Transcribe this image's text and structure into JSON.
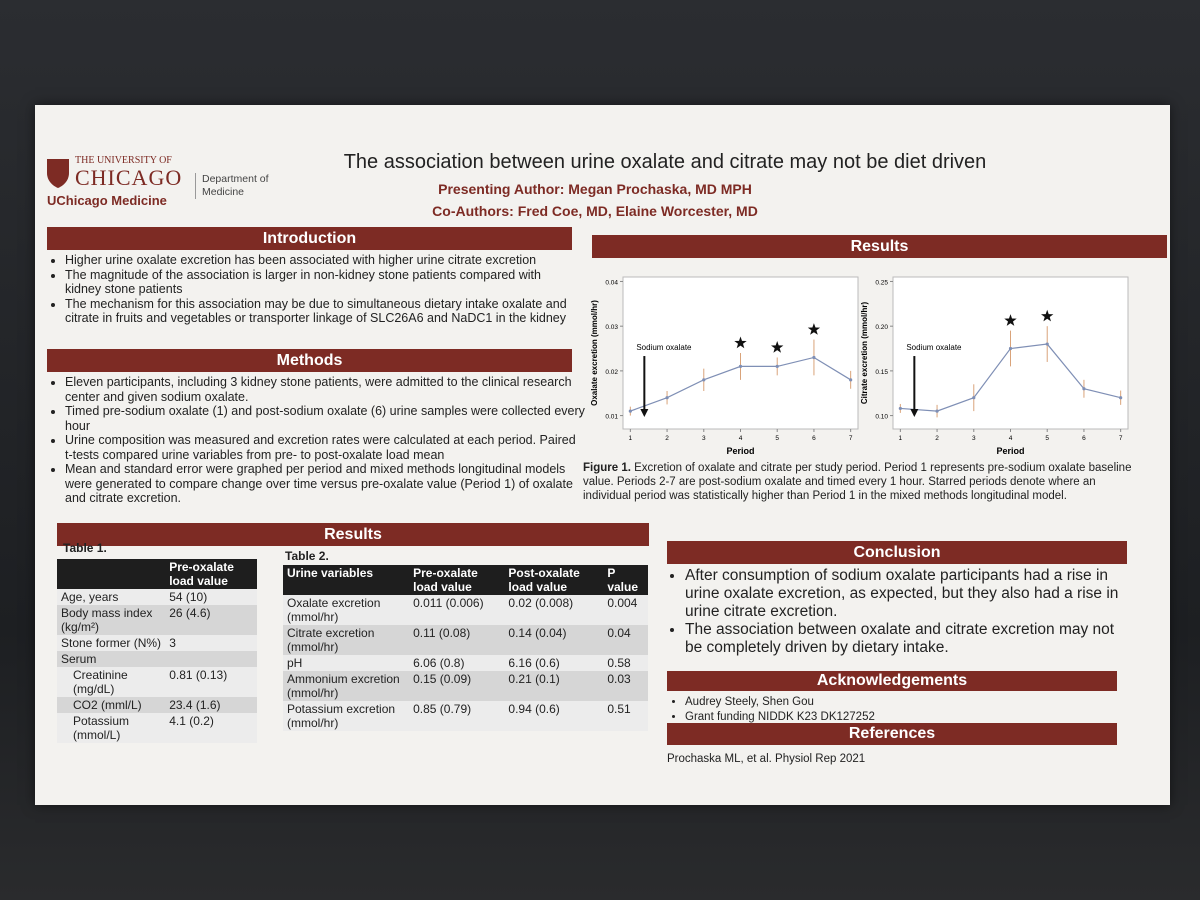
{
  "logo": {
    "line1": "THE UNIVERSITY OF",
    "line2": "CHICAGO",
    "medicine": "UChicago Medicine",
    "department": "Department of Medicine"
  },
  "header": {
    "title": "The association between urine oxalate and citrate may not be diet driven",
    "presenting_author": "Presenting Author: Megan Prochaska, MD MPH",
    "co_authors": "Co-Authors:  Fred Coe, MD, Elaine Worcester, MD"
  },
  "introduction": {
    "heading": "Introduction",
    "bullets": [
      "Higher urine oxalate excretion has been associated with higher urine citrate excretion",
      "The magnitude of the association is larger in non-kidney stone patients compared with kidney stone patients",
      "The mechanism for this association may be due to simultaneous dietary intake oxalate and citrate in fruits and vegetables or transporter linkage of SLC26A6 and NaDC1 in the kidney"
    ]
  },
  "methods": {
    "heading": "Methods",
    "bullets": [
      "Eleven participants, including 3 kidney stone patients, were admitted to the clinical research center and given sodium oxalate.",
      "Timed pre-sodium oxalate (1) and post-sodium oxalate (6) urine samples were collected every hour",
      "Urine composition was measured and excretion rates were calculated at each period. Paired t-tests compared urine variables from pre- to post-oxalate load mean",
      "Mean and standard error were graphed per period and mixed methods longitudinal models were generated to compare change over time versus pre-oxalate value (Period 1) of oxalate and citrate excretion."
    ]
  },
  "results_tables": {
    "heading": "Results",
    "table1": {
      "caption": "Table 1.",
      "header": "Pre-oxalate load value",
      "rows": [
        {
          "label": "Age, years",
          "value": "54 (10)"
        },
        {
          "label": "Body mass index (kg/m²)",
          "value": "26 (4.6)"
        },
        {
          "label": "Stone former (N%)",
          "value": "3"
        },
        {
          "label": "Serum"
        },
        {
          "label": "Creatinine (mg/dL)",
          "value": "0.81 (0.13)",
          "indent": true
        },
        {
          "label": "CO2 (mml/L)",
          "value": "23.4 (1.6)",
          "indent": true
        },
        {
          "label": "Potassium (mmol/L)",
          "value": "4.1 (0.2)",
          "indent": true
        }
      ]
    },
    "table2": {
      "caption": "Table 2.",
      "header": [
        "Urine variables",
        "Pre-oxalate load value",
        "Post-oxalate load value",
        "P value"
      ],
      "rows": [
        [
          "Oxalate excretion (mmol/hr)",
          "0.011 (0.006)",
          "0.02 (0.008)",
          "0.004"
        ],
        [
          "Citrate excretion (mmol/hr)",
          "0.11 (0.08)",
          "0.14 (0.04)",
          "0.04"
        ],
        [
          "pH",
          "6.06 (0.8)",
          "6.16 (0.6)",
          "0.58"
        ],
        [
          "Ammonium excretion (mmol/hr)",
          "0.15 (0.09)",
          "0.21 (0.1)",
          "0.03"
        ],
        [
          "Potassium excretion (mmol/hr)",
          "0.85 (0.79)",
          "0.94 (0.6)",
          "0.51"
        ]
      ]
    }
  },
  "results_figures": {
    "heading": "Results",
    "figures": [
      {
        "type": "line",
        "ylabel": "Oxalate excretion (mmol/hr)",
        "xlabel": "Period",
        "annotation": "Sodium oxalate",
        "x": [
          1,
          2,
          3,
          4,
          5,
          6,
          7
        ],
        "values": [
          0.011,
          0.014,
          0.018,
          0.021,
          0.021,
          0.023,
          0.018
        ],
        "errors": [
          0.001,
          0.0015,
          0.0025,
          0.003,
          0.002,
          0.004,
          0.002
        ],
        "starred": [
          4,
          5,
          6
        ],
        "color": "#7f8fb5",
        "error_color": "#d9a37a",
        "xlim": [
          0.8,
          7.2
        ],
        "xticks": [
          1,
          2,
          3,
          4,
          5,
          6,
          7
        ],
        "ylim": [
          0.007,
          0.041
        ],
        "yticks": [
          0.01,
          0.02,
          0.03,
          0.04
        ]
      },
      {
        "type": "line",
        "ylabel": "Citrate excretion (mmol/hr)",
        "xlabel": "Period",
        "annotation": "Sodium oxalate",
        "x": [
          1,
          2,
          3,
          4,
          5,
          6,
          7
        ],
        "values": [
          0.108,
          0.105,
          0.12,
          0.175,
          0.18,
          0.13,
          0.12
        ],
        "errors": [
          0.005,
          0.007,
          0.015,
          0.02,
          0.02,
          0.01,
          0.008
        ],
        "starred": [
          4,
          5
        ],
        "color": "#7f8fb5",
        "error_color": "#d9a37a",
        "xlim": [
          0.8,
          7.2
        ],
        "xticks": [
          1,
          2,
          3,
          4,
          5,
          6,
          7
        ],
        "ylim": [
          0.085,
          0.255
        ],
        "yticks": [
          {
            "value": 0.1,
            "label": "0.10"
          },
          0.15,
          {
            "value": 0.2,
            "label": "0.20"
          },
          0.25
        ]
      }
    ],
    "caption_label": "Figure 1.",
    "caption": "Excretion of oxalate and citrate per study period. Period 1 represents pre-sodium oxalate baseline value. Periods 2-7 are post-sodium oxalate and timed every 1 hour. Starred periods denote where an individual period was statistically higher than Period 1 in the mixed methods longitudinal model."
  },
  "conclusion": {
    "heading": "Conclusion",
    "bullets": [
      "After consumption of sodium oxalate participants had a rise in urine oxalate excretion, as expected, but they also had a rise in urine citrate excretion.",
      "The association between oxalate and citrate excretion may not be completely driven by dietary intake."
    ]
  },
  "acknowledgements": {
    "heading": "Acknowledgements",
    "items": [
      "Audrey Steely, Shen Gou",
      "Grant funding NIDDK K23 DK127252"
    ]
  },
  "references": {
    "heading": "References",
    "items": [
      "Prochaska ML, et al. Physiol Rep 2021"
    ]
  }
}
